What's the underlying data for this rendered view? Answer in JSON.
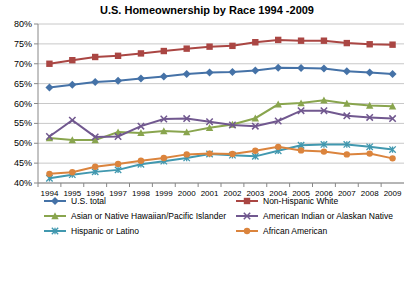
{
  "chart_data": {
    "type": "line",
    "title": "U.S. Homeownership by Race 1994 -2009",
    "categories": [
      "1994",
      "1995",
      "1996",
      "1997",
      "1998",
      "1999",
      "2000",
      "2001",
      "2002",
      "2003",
      "2004",
      "2005",
      "2006",
      "2007",
      "2008",
      "2009"
    ],
    "ylim": [
      40,
      80
    ],
    "yticks": [
      {
        "value": 40,
        "label": "40%"
      },
      {
        "value": 45,
        "label": "45%"
      },
      {
        "value": 50,
        "label": "50%"
      },
      {
        "value": 55,
        "label": "55%"
      },
      {
        "value": 60,
        "label": "60%"
      },
      {
        "value": 65,
        "label": "65%"
      },
      {
        "value": 70,
        "label": "70%"
      },
      {
        "value": 75,
        "label": "75%"
      },
      {
        "value": 80,
        "label": "80%"
      }
    ],
    "grid": true,
    "legend": "bottom",
    "series": [
      {
        "name": "U.S. total",
        "color": "#4572A7",
        "marker": "diamond",
        "values": [
          64.0,
          64.7,
          65.4,
          65.7,
          66.3,
          66.8,
          67.4,
          67.8,
          67.9,
          68.3,
          69.0,
          68.9,
          68.8,
          68.1,
          67.8,
          67.4
        ]
      },
      {
        "name": "Non-Hispanic White",
        "color": "#AA4643",
        "marker": "square",
        "values": [
          70.0,
          70.9,
          71.7,
          72.0,
          72.6,
          73.2,
          73.8,
          74.3,
          74.5,
          75.4,
          76.0,
          75.8,
          75.8,
          75.2,
          74.9,
          74.8
        ]
      },
      {
        "name": "Asian or Native Hawaiian/Pacific Islander",
        "color": "#89A54E",
        "marker": "triangle",
        "values": [
          51.3,
          50.8,
          50.8,
          52.8,
          52.6,
          53.1,
          52.8,
          53.9,
          54.7,
          56.3,
          59.8,
          60.1,
          60.8,
          60.0,
          59.5,
          59.3
        ]
      },
      {
        "name": "American Indian or Alaskan Native",
        "color": "#71588F",
        "marker": "x",
        "values": [
          51.7,
          55.8,
          51.6,
          51.7,
          54.3,
          56.1,
          56.2,
          55.4,
          54.6,
          54.3,
          55.6,
          58.2,
          58.2,
          56.9,
          56.5,
          56.2
        ]
      },
      {
        "name": "Hispanic or Latino",
        "color": "#4198AF",
        "marker": "star",
        "values": [
          41.2,
          42.1,
          42.8,
          43.3,
          44.7,
          45.5,
          46.3,
          47.3,
          47.0,
          46.7,
          48.1,
          49.5,
          49.7,
          49.7,
          49.1,
          48.4
        ]
      },
      {
        "name": "African American",
        "color": "#DB843D",
        "marker": "circle",
        "values": [
          42.3,
          42.7,
          44.1,
          44.8,
          45.6,
          46.3,
          47.2,
          47.4,
          47.3,
          48.1,
          49.1,
          48.2,
          47.9,
          47.2,
          47.4,
          46.2
        ]
      }
    ]
  }
}
